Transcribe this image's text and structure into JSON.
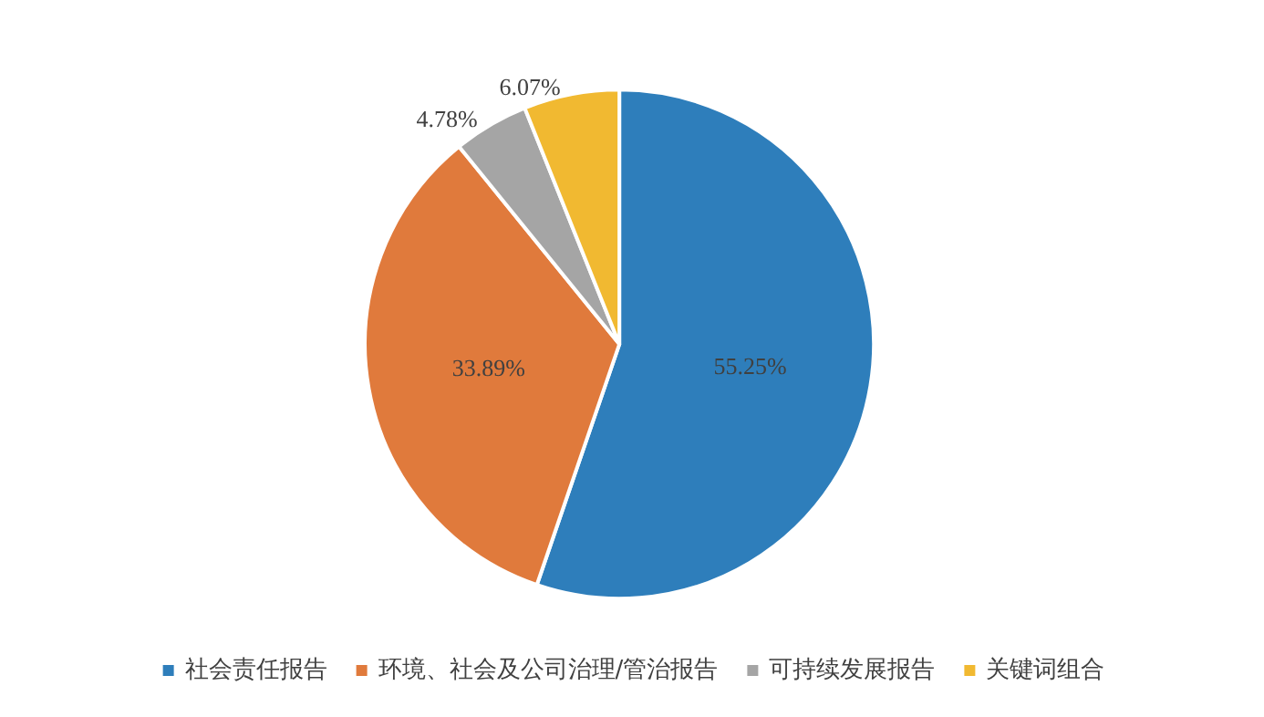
{
  "chart_data": {
    "type": "pie",
    "categories": [
      "社会责任报告",
      "环境、社会及公司治理/管治报告",
      "可持续发展报告",
      "关键词组合"
    ],
    "values": [
      55.25,
      33.89,
      4.78,
      6.07
    ],
    "colors": [
      "#2e7ebb",
      "#e07a3c",
      "#a5a5a5",
      "#f1b931"
    ],
    "value_labels": [
      "55.25%",
      "33.89%",
      "4.78%",
      "6.07%"
    ],
    "legend": "bottom"
  }
}
